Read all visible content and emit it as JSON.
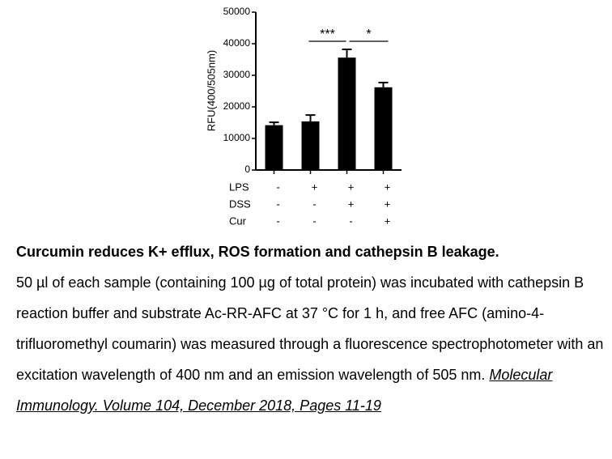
{
  "chart_data": {
    "type": "bar",
    "ylabel": "RFU(400/505nm)",
    "categories": [
      null,
      null,
      null,
      null
    ],
    "values": [
      14200,
      15400,
      35600,
      26200
    ],
    "errors": [
      900,
      2000,
      2600,
      1500
    ],
    "color": "#000000",
    "ylim": [
      0,
      50000
    ],
    "yticks": [
      0,
      10000,
      20000,
      30000,
      40000,
      50000
    ],
    "significance": [
      "***",
      "*"
    ],
    "treatments": [
      {
        "name": "LPS",
        "values": [
          "-",
          "+",
          "+",
          "+"
        ]
      },
      {
        "name": "DSS",
        "values": [
          "-",
          "-",
          "+",
          "+"
        ]
      },
      {
        "name": "Cur",
        "values": [
          "-",
          "-",
          "-",
          "+"
        ]
      }
    ]
  },
  "caption": {
    "title": "Curcumin reduces K+ efflux, ROS formation and cathepsin B leakage.",
    "body": "50 µl of each sample (containing 100 µg of total protein) was incubated with cathepsin B reaction buffer and substrate Ac-RR-AFC at 37 °C for 1 h, and free AFC (amino-4-trifluoromethyl coumarin) was measured through a fluorescence spectrophotometer with an excitation wavelength of 400 nm and an emission wavelength of 505 nm.",
    "citation": "Molecular Immunology. Volume 104, December 2018, Pages 11-19"
  }
}
